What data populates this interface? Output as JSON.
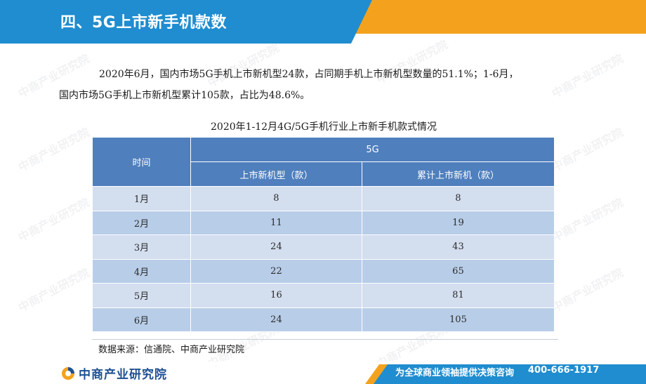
{
  "header": {
    "title": "四、5G上市新手机款数"
  },
  "intro": {
    "line1": "2020年6月，国内市场5G手机上市新机型24款，占同期手机上市新机型数量的51.1%；1-6月，",
    "line2": "国内市场5G手机上市新机型累计105款，占比为48.6%。"
  },
  "table": {
    "title": "2020年1-12月4G/5G手机行业上市新手机款式情况",
    "col_time": "时间",
    "col_group": "5G",
    "col_new": "上市新机型（款）",
    "col_cumulative": "累计上市新机（款）",
    "rows": [
      {
        "month": "1月",
        "new": "8",
        "cumulative": "8"
      },
      {
        "month": "2月",
        "new": "11",
        "cumulative": "19"
      },
      {
        "month": "3月",
        "new": "24",
        "cumulative": "43"
      },
      {
        "month": "4月",
        "new": "22",
        "cumulative": "65"
      },
      {
        "month": "5月",
        "new": "16",
        "cumulative": "81"
      },
      {
        "month": "6月",
        "new": "24",
        "cumulative": "105"
      }
    ]
  },
  "source": "数据来源：信通院、中商产业研究院",
  "footer": {
    "brand": "中商产业研究院",
    "slogan": "为全球商业领袖提供决策咨询",
    "phone": "400-666-1917"
  },
  "watermark": "中商产业研究院",
  "colors": {
    "header_blue": "#1f8dcf",
    "accent_orange": "#f4a21d",
    "table_header": "#4f7fbd",
    "row_light": "#d3deef",
    "row_dark": "#b8cde8",
    "brand_blue": "#1e4f93"
  },
  "icons": {
    "logo": "zhongshang-logo-icon"
  }
}
